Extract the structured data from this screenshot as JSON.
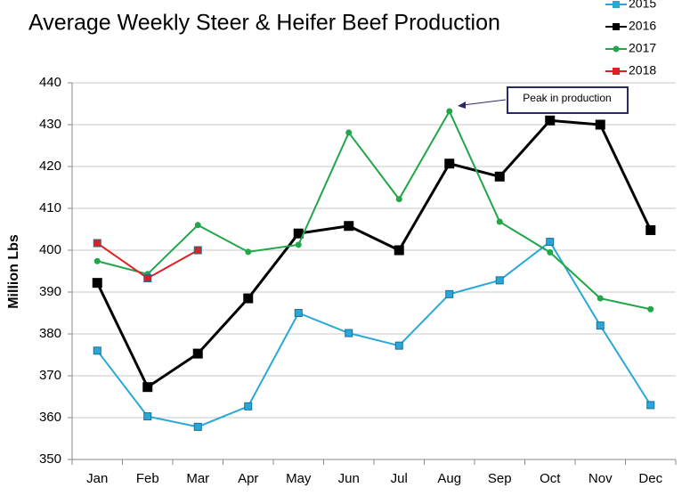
{
  "chart_data": {
    "type": "line",
    "title": "Average Weekly Steer & Heifer Beef Production",
    "y_label": "Million Lbs",
    "annotation": "Peak in production",
    "categories": [
      "Jan",
      "Feb",
      "Mar",
      "Apr",
      "May",
      "Jun",
      "Jul",
      "Aug",
      "Sep",
      "Oct",
      "Nov",
      "Dec"
    ],
    "series": [
      {
        "name": "2015",
        "color": "#29a8d8",
        "marker": "square",
        "values": [
          376,
          360.3,
          357.8,
          362.7,
          385,
          380.2,
          377.2,
          389.5,
          392.8,
          402,
          382,
          363
        ]
      },
      {
        "name": "2016",
        "color": "#000000",
        "marker": "square",
        "values": [
          392.2,
          367.3,
          375.3,
          388.5,
          404,
          405.8,
          400,
          420.7,
          417.6,
          431,
          430,
          404.8
        ]
      },
      {
        "name": "2017",
        "color": "#22a64a",
        "marker": "circle",
        "values": [
          397.4,
          394.3,
          406,
          399.6,
          401.3,
          428.1,
          412.2,
          433.2,
          406.8,
          399.5,
          388.5,
          385.9
        ]
      },
      {
        "name": "2018",
        "color": "#e02020",
        "marker": "square",
        "values": [
          401.7,
          393.3,
          400,
          null,
          null,
          null,
          null,
          null,
          null,
          null,
          null,
          null
        ]
      }
    ],
    "ylim": [
      350,
      440
    ],
    "yticks": [
      350,
      360,
      370,
      380,
      390,
      400,
      410,
      420,
      430,
      440
    ],
    "grid": true,
    "legend": "top-right"
  }
}
